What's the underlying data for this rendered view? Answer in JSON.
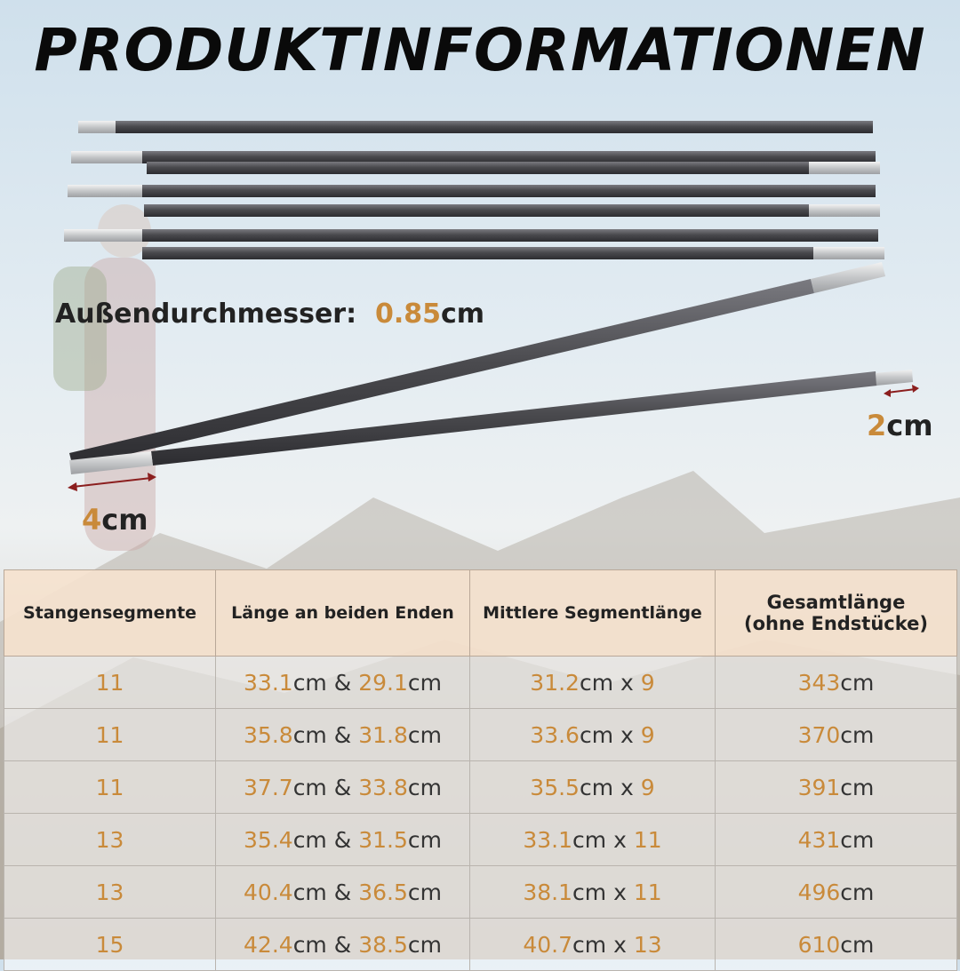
{
  "title": "PRODUKTINFORMATIONEN",
  "diameter": {
    "label": "Außendurchmesser:",
    "value": "0.85",
    "unit": "cm"
  },
  "tip_length": {
    "value": "2",
    "unit": "cm"
  },
  "sleeve_length": {
    "value": "4",
    "unit": "cm"
  },
  "colors": {
    "accent": "#c98a3a",
    "header_bg": "#f5e2ce",
    "pole": "#4a4a4e",
    "arrow": "#8b1e1e"
  },
  "table": {
    "headers": [
      "Stangensegmente",
      "Länge an beiden Enden",
      "Mittlere Segmentlänge",
      "Gesamtlänge",
      "(ohne Endstücke)"
    ],
    "rows": [
      {
        "segments": "11",
        "end_a": "33.1",
        "end_b": "29.1",
        "mid": "31.2",
        "mid_count": "9",
        "total": "343"
      },
      {
        "segments": "11",
        "end_a": "35.8",
        "end_b": "31.8",
        "mid": "33.6",
        "mid_count": "9",
        "total": "370"
      },
      {
        "segments": "11",
        "end_a": "37.7",
        "end_b": "33.8",
        "mid": "35.5",
        "mid_count": "9",
        "total": "391"
      },
      {
        "segments": "13",
        "end_a": "35.4",
        "end_b": "31.5",
        "mid": "33.1",
        "mid_count": "11",
        "total": "431"
      },
      {
        "segments": "13",
        "end_a": "40.4",
        "end_b": "36.5",
        "mid": "38.1",
        "mid_count": "11",
        "total": "496"
      },
      {
        "segments": "15",
        "end_a": "42.4",
        "end_b": "38.5",
        "mid": "40.7",
        "mid_count": "13",
        "total": "610"
      }
    ],
    "unit": "cm",
    "and": "&",
    "times": "x"
  }
}
